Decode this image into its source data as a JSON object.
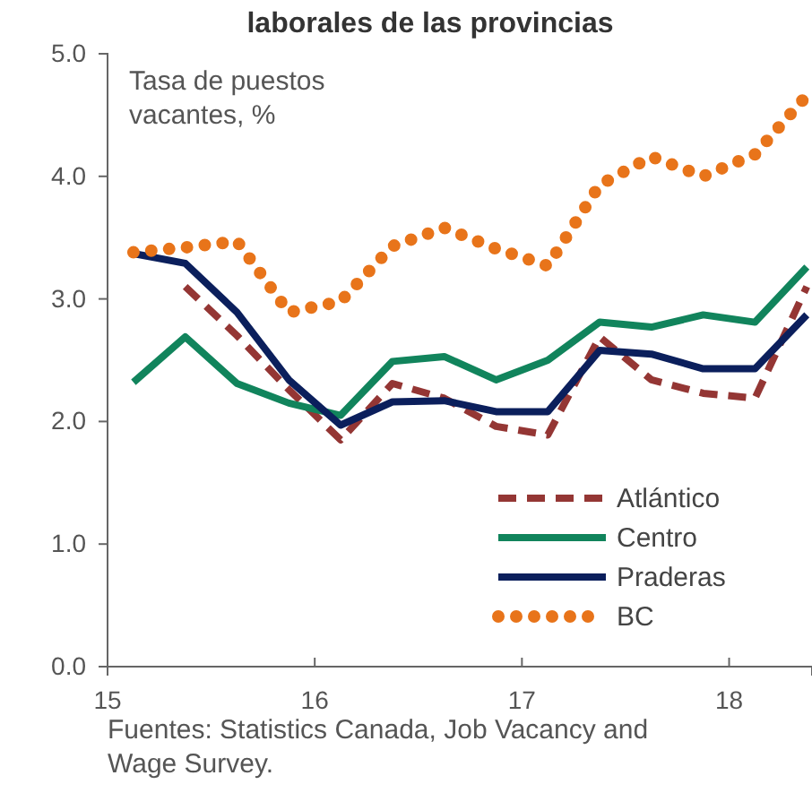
{
  "chart_data": {
    "type": "line",
    "title": "laborales de las provincias",
    "ylabel": "Tasa de puestos vacantes, %",
    "x": [
      15.125,
      15.375,
      15.625,
      15.875,
      16.125,
      16.375,
      16.625,
      16.875,
      17.125,
      17.375,
      17.625,
      17.875,
      18.125,
      18.375
    ],
    "xlim": [
      15,
      18.4
    ],
    "xticks": [
      15,
      16,
      17,
      18
    ],
    "ylim": [
      0,
      5
    ],
    "yticks": [
      {
        "value": 0,
        "label": "0.0"
      },
      {
        "value": 1,
        "label": "1.0"
      },
      {
        "value": 2,
        "label": "2.0"
      },
      {
        "value": 3,
        "label": "3.0"
      },
      {
        "value": 4,
        "label": "4.0"
      },
      {
        "value": 5,
        "label": "5.0"
      }
    ],
    "series": [
      {
        "name": "Atlántico",
        "color": "#943634",
        "line_style": "dashed",
        "values": [
          null,
          3.1,
          2.7,
          2.26,
          1.85,
          2.31,
          2.19,
          1.96,
          1.89,
          2.69,
          2.34,
          2.23,
          2.19,
          3.1
        ]
      },
      {
        "name": "Centro",
        "color": "#11845c",
        "line_style": "solid",
        "values": [
          2.32,
          2.69,
          2.31,
          2.15,
          2.05,
          2.49,
          2.53,
          2.34,
          2.5,
          2.81,
          2.77,
          2.87,
          2.81,
          3.26
        ]
      },
      {
        "name": "Praderas",
        "color": "#0b1f5c",
        "line_style": "solid",
        "values": [
          3.37,
          3.29,
          2.89,
          2.34,
          1.97,
          2.16,
          2.17,
          2.08,
          2.08,
          2.58,
          2.55,
          2.43,
          2.43,
          2.87
        ]
      },
      {
        "name": "BC",
        "color": "#e8741a",
        "line_style": "dotted",
        "values": [
          3.38,
          3.42,
          3.47,
          2.89,
          2.98,
          3.43,
          3.58,
          3.41,
          3.27,
          3.93,
          4.16,
          4.0,
          4.18,
          4.66
        ]
      }
    ],
    "legend": "bottom right",
    "grid": false,
    "marker": "none",
    "annotations": [
      "Fuentes: Statistics Canada, Job Vacancy and Wage Survey."
    ]
  }
}
